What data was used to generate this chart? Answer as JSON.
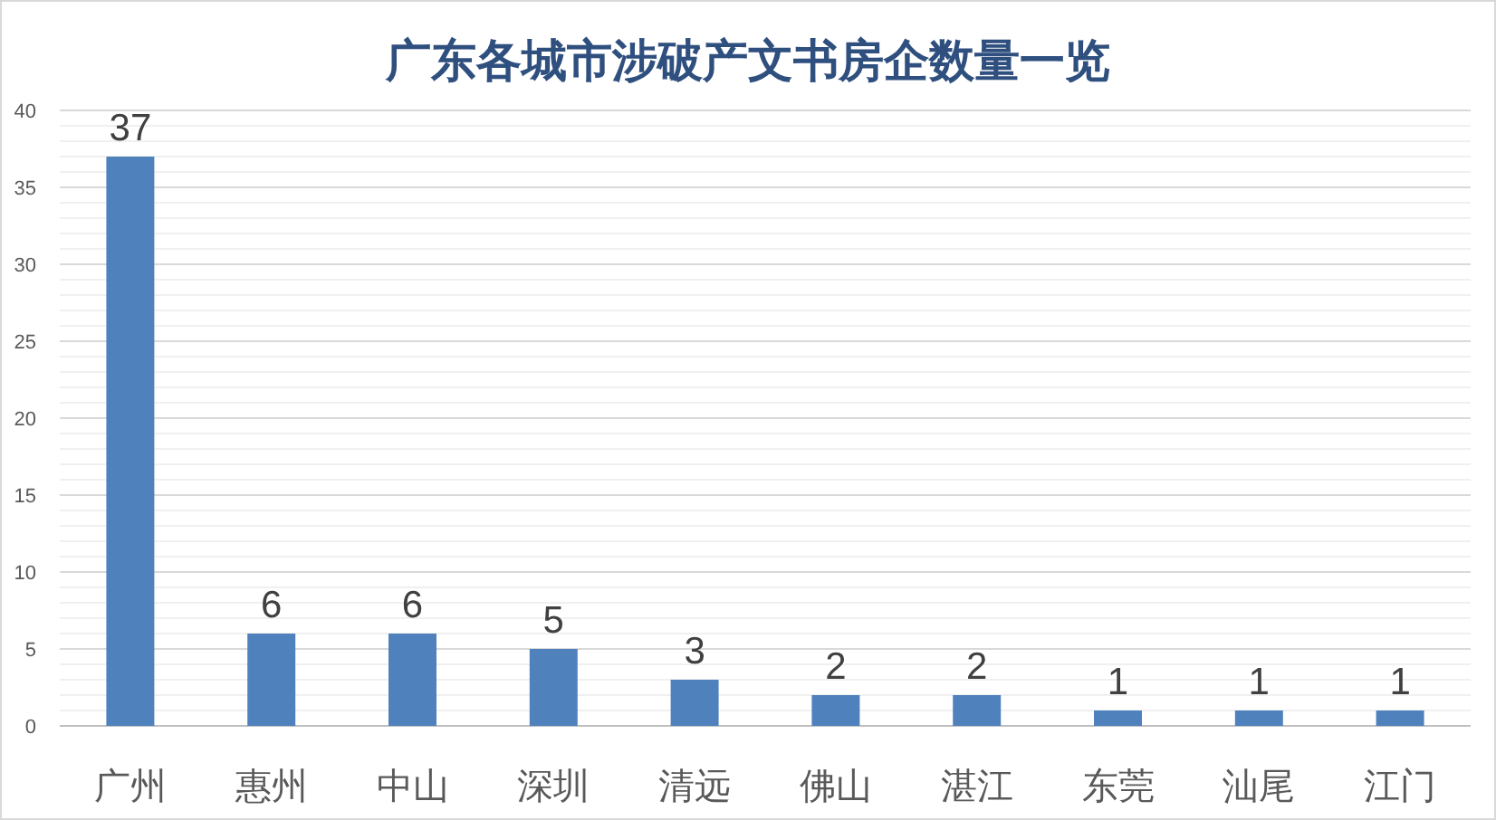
{
  "chart_data": {
    "type": "bar",
    "title": "广东各城市涉破产文书房企数量一览",
    "categories": [
      "广州",
      "惠州",
      "中山",
      "深圳",
      "清远",
      "佛山",
      "湛江",
      "东莞",
      "汕尾",
      "江门"
    ],
    "values": [
      37,
      6,
      6,
      5,
      3,
      2,
      2,
      1,
      1,
      1
    ],
    "color": "#4f81bd",
    "ylim": [
      0,
      40
    ],
    "yticks": [
      0,
      {
        "value": 1,
        "label": null
      },
      {
        "value": 2,
        "label": null
      },
      {
        "value": 3,
        "label": null
      },
      {
        "value": 4,
        "label": null
      },
      5,
      {
        "value": 6,
        "label": null
      },
      {
        "value": 7,
        "label": null
      },
      {
        "value": 8,
        "label": null
      },
      {
        "value": 9,
        "label": null
      },
      10,
      {
        "value": 11,
        "label": null
      },
      {
        "value": 12,
        "label": null
      },
      {
        "value": 13,
        "label": null
      },
      {
        "value": 14,
        "label": null
      },
      15,
      {
        "value": 16,
        "label": null
      },
      {
        "value": 17,
        "label": null
      },
      {
        "value": 18,
        "label": null
      },
      {
        "value": 19,
        "label": null
      },
      20,
      {
        "value": 21,
        "label": null
      },
      {
        "value": 22,
        "label": null
      },
      {
        "value": 23,
        "label": null
      },
      {
        "value": 24,
        "label": null
      },
      25,
      {
        "value": 26,
        "label": null
      },
      {
        "value": 27,
        "label": null
      },
      {
        "value": 28,
        "label": null
      },
      {
        "value": 29,
        "label": null
      },
      30,
      {
        "value": 31,
        "label": null
      },
      {
        "value": 32,
        "label": null
      },
      {
        "value": 33,
        "label": null
      },
      {
        "value": 34,
        "label": null
      },
      35,
      {
        "value": 36,
        "label": null
      },
      {
        "value": 37,
        "label": null
      },
      {
        "value": 38,
        "label": null
      },
      {
        "value": 39,
        "label": null
      },
      40
    ],
    "grid": "y",
    "data_labels": true
  }
}
